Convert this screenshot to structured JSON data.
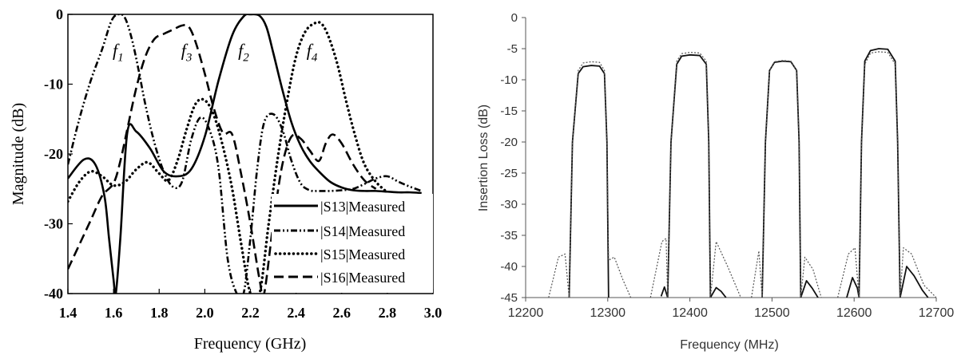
{
  "chart_data": [
    {
      "type": "line",
      "title": "",
      "xlabel": "Frequency (GHz)",
      "ylabel": "Magnitude (dB)",
      "xlim": [
        1.4,
        3.0
      ],
      "ylim": [
        -40,
        0
      ],
      "xticks": [
        "1.4",
        "1.6",
        "1.8",
        "2.0",
        "2.2",
        "2.4",
        "2.6",
        "2.8",
        "3.0"
      ],
      "yticks": [
        "0",
        "-10",
        "-20",
        "-30",
        "-40"
      ],
      "legend_position": "bottom-right",
      "annotations": [
        {
          "text": "f1",
          "x": 1.62,
          "y": -6
        },
        {
          "text": "f3",
          "x": 1.92,
          "y": -6
        },
        {
          "text": "f2",
          "x": 2.17,
          "y": -6
        },
        {
          "text": "f4",
          "x": 2.47,
          "y": -6
        }
      ],
      "series": [
        {
          "name": "|S13|Measured",
          "style": "solid",
          "x": [
            1.4,
            1.47,
            1.52,
            1.56,
            1.58,
            1.6,
            1.61,
            1.63,
            1.66,
            1.7,
            1.76,
            1.82,
            1.88,
            1.94,
            2.0,
            2.06,
            2.12,
            2.17,
            2.2,
            2.24,
            2.27,
            2.3,
            2.34,
            2.38,
            2.42,
            2.46,
            2.5,
            2.55,
            2.6,
            2.65,
            2.7,
            2.75,
            2.8,
            2.85,
            2.9,
            2.95
          ],
          "y": [
            -23.5,
            -20.8,
            -21.5,
            -26,
            -32,
            -38,
            -40,
            -32,
            -17,
            -16.8,
            -19.2,
            -22.5,
            -23.2,
            -22.2,
            -17.5,
            -9.5,
            -3,
            -0.3,
            0,
            -0.2,
            -1.8,
            -5.5,
            -10.8,
            -15.5,
            -18.8,
            -21,
            -22.5,
            -24,
            -24.8,
            -25.2,
            -25.3,
            -25.3,
            -25.4,
            -25.5,
            -25.5,
            -25.6
          ]
        },
        {
          "name": "|S14|Measured",
          "style": "dash-dot-dot",
          "x": [
            1.4,
            1.45,
            1.5,
            1.55,
            1.59,
            1.62,
            1.65,
            1.68,
            1.71,
            1.74,
            1.78,
            1.82,
            1.86,
            1.9,
            1.94,
            1.98,
            2.02,
            2.06,
            2.1,
            2.14,
            2.17,
            2.2,
            2.23,
            2.26,
            2.3,
            2.34,
            2.38,
            2.42,
            2.46,
            2.5,
            2.55,
            2.6,
            2.65,
            2.7,
            2.75,
            2.8,
            2.85,
            2.9,
            2.95
          ],
          "y": [
            -21.5,
            -15,
            -9.5,
            -5,
            -1,
            0,
            -0.5,
            -3.5,
            -8,
            -13,
            -18.5,
            -22.5,
            -24.7,
            -24,
            -18,
            -14.8,
            -16.5,
            -22,
            -35,
            -40,
            -40,
            -32,
            -22,
            -15.5,
            -14.3,
            -16.5,
            -21,
            -24.2,
            -25.2,
            -25.3,
            -25.3,
            -25.2,
            -25,
            -24.3,
            -23.5,
            -23.2,
            -24,
            -24.7,
            -25.3
          ]
        },
        {
          "name": "|S15|Measured",
          "style": "dotted",
          "x": [
            1.4,
            1.45,
            1.5,
            1.55,
            1.6,
            1.65,
            1.7,
            1.75,
            1.8,
            1.84,
            1.88,
            1.92,
            1.96,
            2.0,
            2.04,
            2.08,
            2.12,
            2.16,
            2.2,
            2.24,
            2.28,
            2.32,
            2.36,
            2.4,
            2.44,
            2.48,
            2.51,
            2.54,
            2.58,
            2.62,
            2.66,
            2.7,
            2.75,
            2.8
          ],
          "y": [
            -26.8,
            -24,
            -22.5,
            -23.2,
            -24.5,
            -24,
            -22.2,
            -21.2,
            -22.8,
            -23.8,
            -21,
            -16.5,
            -12.8,
            -12.3,
            -14.5,
            -19,
            -25,
            -33,
            -40,
            -40,
            -30,
            -20.5,
            -12.5,
            -6,
            -2.5,
            -1.3,
            -1.3,
            -3,
            -7,
            -12.5,
            -17.5,
            -21.5,
            -24,
            -25.5
          ]
        },
        {
          "name": "|S16|Measured",
          "style": "dashed",
          "x": [
            1.4,
            1.45,
            1.5,
            1.55,
            1.6,
            1.63,
            1.66,
            1.7,
            1.74,
            1.78,
            1.82,
            1.86,
            1.9,
            1.93,
            1.96,
            2.0,
            2.04,
            2.08,
            2.12,
            2.16,
            2.2,
            2.24,
            2.26,
            2.3,
            2.34,
            2.38,
            2.42,
            2.46,
            2.5,
            2.53,
            2.56,
            2.6,
            2.65,
            2.7,
            2.75
          ],
          "y": [
            -36.5,
            -33,
            -29.5,
            -26,
            -24.2,
            -21,
            -16.5,
            -10.5,
            -6,
            -3.5,
            -2.8,
            -2.2,
            -1.6,
            -1.8,
            -4,
            -8.5,
            -13.5,
            -17,
            -17.2,
            -23,
            -30,
            -38,
            -40,
            -30,
            -21.5,
            -17.5,
            -17.8,
            -19.5,
            -21,
            -18.5,
            -17.2,
            -18.5,
            -21.5,
            -23.8,
            -25
          ]
        }
      ]
    },
    {
      "type": "line",
      "title": "",
      "xlabel": "Frequency (MHz)",
      "ylabel": "Insertion Loss (dB)",
      "xlim": [
        12200,
        12700
      ],
      "ylim": [
        -45,
        0
      ],
      "xticks": [
        "12200",
        "12300",
        "12400",
        "12500",
        "12600",
        "12700"
      ],
      "yticks": [
        "0",
        "-5",
        "-10",
        "-15",
        "-20",
        "-25",
        "-30",
        "-35",
        "-40",
        "-45"
      ],
      "grid": false,
      "series": [
        {
          "style": "solid",
          "segments": [
            {
              "x": [
                12253,
                12257,
                12264,
                12270,
                12280,
                12290,
                12296,
                12299,
                12301
              ],
              "y": [
                -45,
                -20,
                -9,
                -7.9,
                -7.7,
                -7.8,
                -9,
                -20,
                -45
              ]
            },
            {
              "x": [
                12373,
                12377,
                12384,
                12390,
                12400,
                12412,
                12420,
                12423,
                12425
              ],
              "y": [
                -45,
                -20,
                -7.5,
                -6.2,
                -6.0,
                -6.1,
                -7.5,
                -20,
                -45
              ]
            },
            {
              "x": [
                12488,
                12492,
                12497,
                12503,
                12513,
                12523,
                12530,
                12533,
                12535
              ],
              "y": [
                -45,
                -20,
                -8.5,
                -7.2,
                -7.0,
                -7.1,
                -8.5,
                -20,
                -45
              ]
            },
            {
              "x": [
                12606,
                12609,
                12613,
                12620,
                12630,
                12641,
                12650,
                12653,
                12656
              ],
              "y": [
                -45,
                -20,
                -7,
                -5.3,
                -5.0,
                -5.1,
                -7,
                -20,
                -45
              ]
            },
            {
              "x": [
                12365,
                12369,
                12373
              ],
              "y": [
                -44.8,
                -43.3,
                -45
              ]
            },
            {
              "x": [
                12425,
                12432,
                12438,
                12444
              ],
              "y": [
                -45,
                -43.4,
                -44,
                -45
              ]
            },
            {
              "x": [
                12535,
                12542,
                12549,
                12556
              ],
              "y": [
                -45,
                -42.3,
                -43.5,
                -45
              ]
            },
            {
              "x": [
                12591,
                12598,
                12604,
                12606
              ],
              "y": [
                -45,
                -41.8,
                -43.5,
                -45
              ]
            },
            {
              "x": [
                12656,
                12664,
                12673,
                12683,
                12690
              ],
              "y": [
                -45,
                -40,
                -41.5,
                -43.8,
                -45
              ]
            }
          ]
        },
        {
          "style": "dotted",
          "segments": [
            {
              "x": [
                12228,
                12240,
                12248,
                12253,
                12257,
                12264,
                12270,
                12280,
                12290,
                12296,
                12299,
                12301,
                12308,
                12318,
                12328
              ],
              "y": [
                -45,
                -38.5,
                -38,
                -45,
                -20,
                -8.5,
                -7.3,
                -7.1,
                -7.2,
                -8.5,
                -20,
                -39,
                -38.5,
                -42,
                -45
              ]
            },
            {
              "x": [
                12352,
                12366,
                12371,
                12373,
                12377,
                12384,
                12390,
                12400,
                12412,
                12420,
                12423,
                12425,
                12432,
                12446,
                12462
              ],
              "y": [
                -45,
                -36,
                -35.5,
                -45,
                -20,
                -7,
                -5.8,
                -5.6,
                -5.7,
                -7,
                -20,
                -45,
                -36,
                -40,
                -45
              ]
            },
            {
              "x": [
                12475,
                12484,
                12488,
                12492,
                12497,
                12503,
                12513,
                12523,
                12530,
                12533,
                12535,
                12540,
                12550,
                12560
              ],
              "y": [
                -45,
                -37.5,
                -45,
                -20,
                -8.5,
                -7.1,
                -6.9,
                -7.0,
                -8.5,
                -20,
                -45,
                -38.5,
                -40.5,
                -45
              ]
            },
            {
              "x": [
                12580,
                12593,
                12601,
                12606,
                12609,
                12613,
                12620,
                12630,
                12641,
                12650,
                12653,
                12656,
                12660,
                12670,
                12685,
                12700
              ],
              "y": [
                -45,
                -38,
                -37,
                -45,
                -20,
                -7.5,
                -5.7,
                -5.5,
                -5.6,
                -7.5,
                -20,
                -45,
                -37,
                -38,
                -43,
                -45
              ]
            }
          ]
        }
      ]
    }
  ]
}
